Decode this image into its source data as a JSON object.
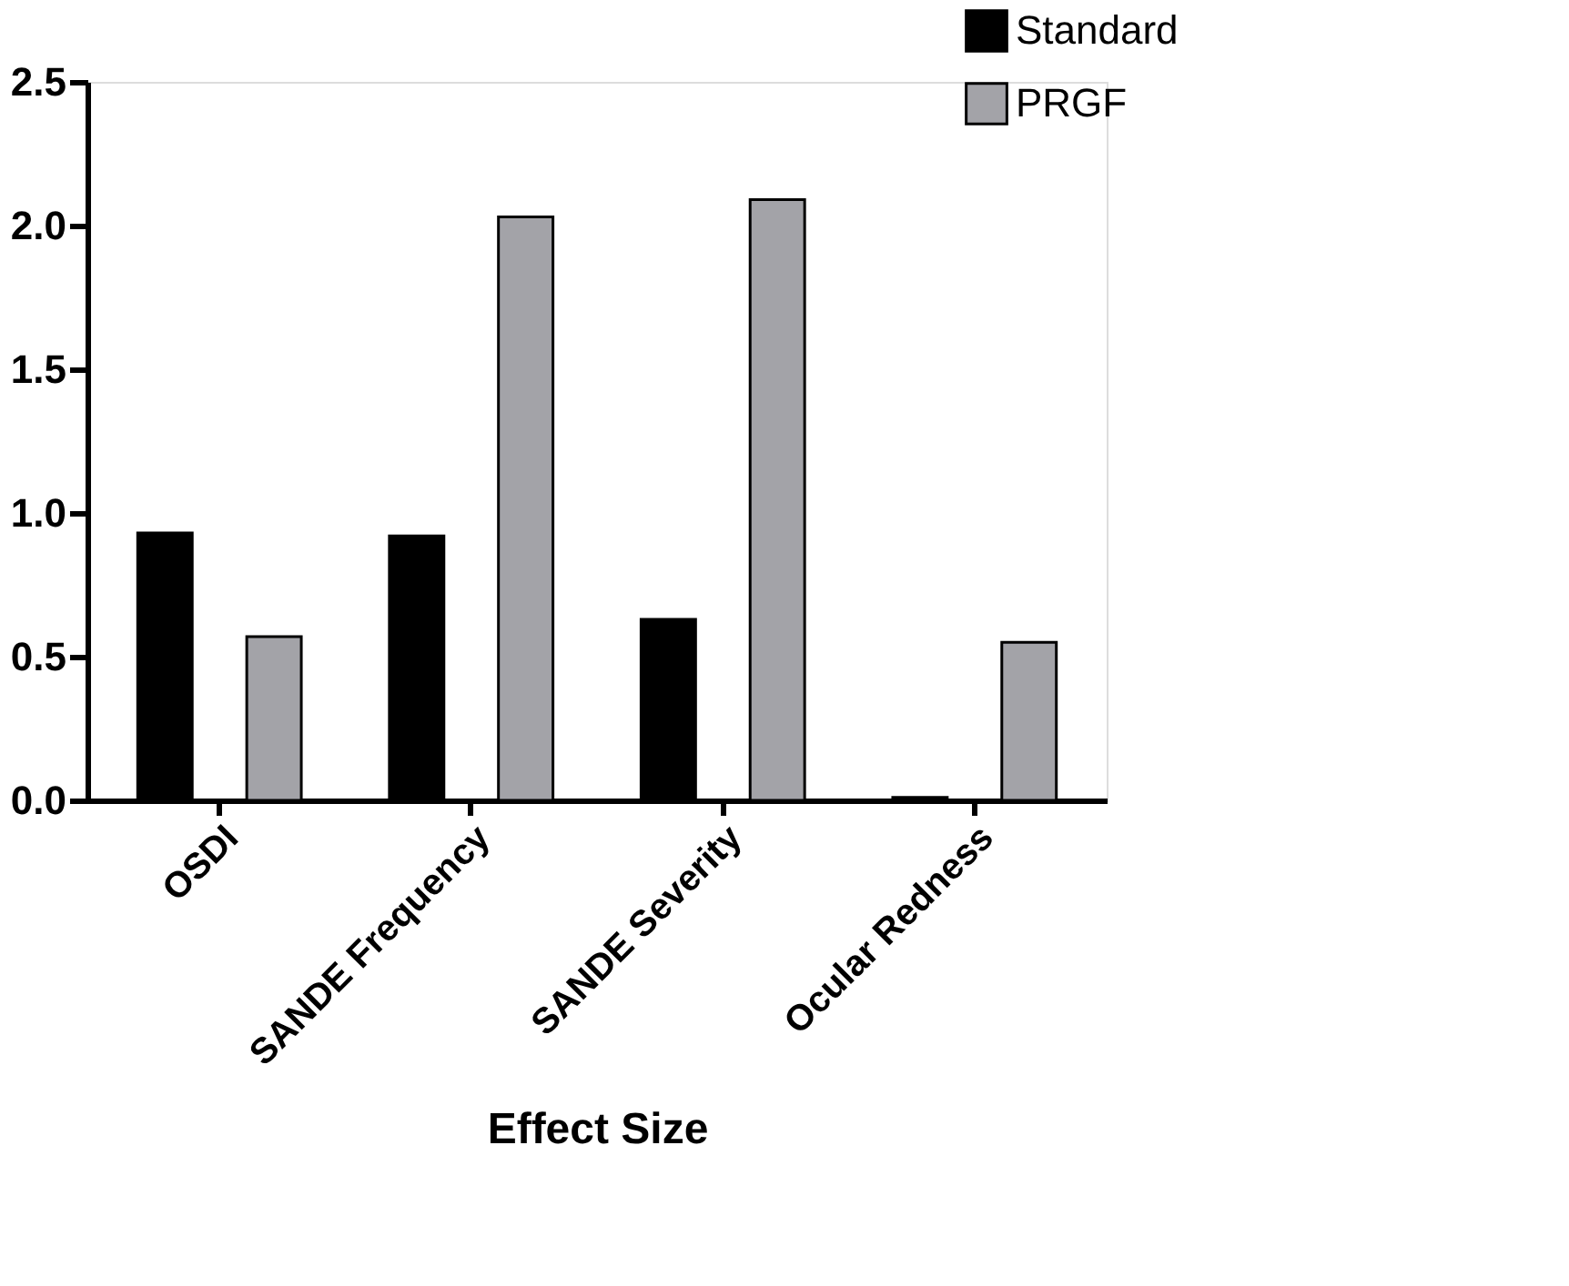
{
  "chart_data": {
    "type": "bar",
    "xlabel": "Effect Size",
    "categories": [
      "OSDI",
      "SANDE Frequency",
      "SANDE Severity",
      "Ocular Redness"
    ],
    "series": [
      {
        "name": "Standard",
        "color": "#000000",
        "values": [
          0.93,
          0.92,
          0.63,
          0.01
        ]
      },
      {
        "name": "PRGF",
        "color": "#a3a3a8",
        "values": [
          0.57,
          2.03,
          2.09,
          0.55
        ]
      }
    ],
    "ylim": [
      0,
      2.5
    ],
    "yticks": [
      {
        "value": 0,
        "label": "0.0"
      },
      0.5,
      {
        "value": 1,
        "label": "1.0"
      },
      1.5,
      {
        "value": 2,
        "label": "2.0"
      },
      2.5
    ],
    "grid": false,
    "legend": "top right"
  }
}
